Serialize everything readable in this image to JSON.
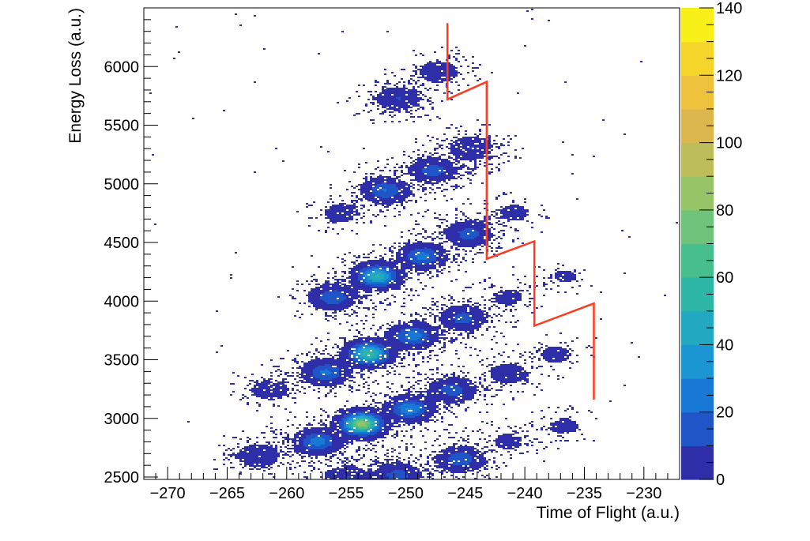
{
  "chart_data": {
    "type": "heatmap",
    "title": "",
    "xlabel": "Time of Flight (a.u.)",
    "ylabel": "Energy Loss (a.u.)",
    "xlim": [
      -272,
      -227
    ],
    "ylim": [
      2480,
      6500
    ],
    "x_ticks": [
      -270,
      -265,
      -260,
      -255,
      -250,
      -245,
      -240,
      -235,
      -230
    ],
    "y_ticks": [
      2500,
      3000,
      3500,
      4000,
      4500,
      5000,
      5500,
      6000
    ],
    "colorbar": {
      "range": [
        0,
        140
      ],
      "ticks": [
        0,
        20,
        40,
        60,
        80,
        100,
        120,
        140
      ],
      "palette": [
        "#2d2ea8",
        "#2055c8",
        "#1878d6",
        "#1c96d3",
        "#22a8c0",
        "#2db5a6",
        "#47bf8c",
        "#6fc37a",
        "#98c468",
        "#bdbd5a",
        "#dbb74e",
        "#eec23c",
        "#f6d52a",
        "#f9f01a"
      ]
    },
    "clusters": [
      {
        "x": -262.5,
        "y": 2690,
        "peak": 8
      },
      {
        "x": -257.5,
        "y": 2810,
        "peak": 25
      },
      {
        "x": -253.8,
        "y": 2960,
        "peak": 85
      },
      {
        "x": -249.8,
        "y": 3090,
        "peak": 30
      },
      {
        "x": -246.2,
        "y": 3250,
        "peak": 15
      },
      {
        "x": -245.5,
        "y": 2660,
        "peak": 18
      },
      {
        "x": -250.8,
        "y": 2520,
        "peak": 14
      },
      {
        "x": -255.0,
        "y": 2500,
        "peak": 10
      },
      {
        "x": -256.8,
        "y": 3400,
        "peak": 22
      },
      {
        "x": -253.2,
        "y": 3560,
        "peak": 60
      },
      {
        "x": -249.5,
        "y": 3710,
        "peak": 26
      },
      {
        "x": -245.3,
        "y": 3860,
        "peak": 14
      },
      {
        "x": -261.5,
        "y": 3250,
        "peak": 5
      },
      {
        "x": -256.2,
        "y": 4040,
        "peak": 18
      },
      {
        "x": -252.5,
        "y": 4220,
        "peak": 50
      },
      {
        "x": -248.7,
        "y": 4390,
        "peak": 24
      },
      {
        "x": -244.8,
        "y": 4580,
        "peak": 14
      },
      {
        "x": -251.8,
        "y": 4950,
        "peak": 20
      },
      {
        "x": -247.8,
        "y": 5120,
        "peak": 15
      },
      {
        "x": -244.6,
        "y": 5310,
        "peak": 9
      },
      {
        "x": -250.8,
        "y": 5730,
        "peak": 9
      },
      {
        "x": -247.3,
        "y": 5960,
        "peak": 6
      },
      {
        "x": -255.5,
        "y": 4760,
        "peak": 4
      },
      {
        "x": -241.5,
        "y": 3390,
        "peak": 5
      },
      {
        "x": -241.0,
        "y": 4760,
        "peak": 3
      },
      {
        "x": -241.5,
        "y": 4040,
        "peak": 3
      },
      {
        "x": -236.8,
        "y": 2940,
        "peak": 3
      },
      {
        "x": -237.5,
        "y": 3550,
        "peak": 3
      },
      {
        "x": -241.5,
        "y": 2810,
        "peak": 3
      },
      {
        "x": -236.7,
        "y": 4220,
        "peak": 2
      }
    ],
    "cut_line": {
      "color": "#ff3b1f",
      "points": [
        [
          -246.5,
          6370
        ],
        [
          -246.5,
          5720
        ],
        [
          -243.2,
          5870
        ],
        [
          -243.2,
          4360
        ],
        [
          -239.2,
          4510
        ],
        [
          -239.2,
          3790
        ],
        [
          -234.2,
          3980
        ],
        [
          -234.2,
          3160
        ]
      ]
    }
  }
}
